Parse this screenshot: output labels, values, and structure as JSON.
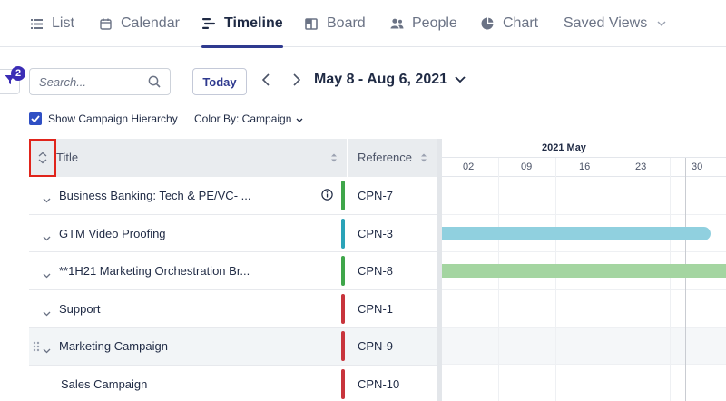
{
  "tabs": [
    {
      "label": "List",
      "icon": "list-icon",
      "active": false
    },
    {
      "label": "Calendar",
      "icon": "calendar-icon",
      "active": false
    },
    {
      "label": "Timeline",
      "icon": "timeline-icon",
      "active": true
    },
    {
      "label": "Board",
      "icon": "board-icon",
      "active": false
    },
    {
      "label": "People",
      "icon": "people-icon",
      "active": false
    },
    {
      "label": "Chart",
      "icon": "pie-chart-icon",
      "active": false
    },
    {
      "label": "Saved Views",
      "icon": "chevron-down-icon",
      "active": false
    }
  ],
  "toolbar": {
    "filter_count": "2",
    "search_placeholder": "Search...",
    "today_label": "Today",
    "date_range": "May 8 - Aug 6, 2021"
  },
  "options": {
    "show_hierarchy_label": "Show Campaign Hierarchy",
    "show_hierarchy_checked": true,
    "color_by_label": "Color By: Campaign"
  },
  "grid": {
    "col_title": "Title",
    "col_reference": "Reference",
    "rows": [
      {
        "title": "Business Banking: Tech & PE/VC- ...",
        "ref": "CPN-7",
        "color": "#3fa64a",
        "expandable": true,
        "info": true
      },
      {
        "title": "GTM Video Proofing",
        "ref": "CPN-3",
        "color": "#2aa3b8",
        "expandable": true,
        "info": false
      },
      {
        "title": "**1H21 Marketing Orchestration Br...",
        "ref": "CPN-8",
        "color": "#3fa64a",
        "expandable": true,
        "info": false
      },
      {
        "title": "Support",
        "ref": "CPN-1",
        "color": "#c8343c",
        "expandable": true,
        "info": false
      },
      {
        "title": "Marketing Campaign",
        "ref": "CPN-9",
        "color": "#c8343c",
        "expandable": true,
        "info": false
      },
      {
        "title": "Sales Campaign",
        "ref": "CPN-10",
        "color": "#c8343c",
        "expandable": false,
        "info": false
      }
    ]
  },
  "timeline": {
    "month_label": "2021 May",
    "weeks": [
      "02",
      "09",
      "16",
      "23",
      "30"
    ],
    "bar_colors": {
      "video": "#90d0df",
      "orchestration": "#a4d5a1"
    }
  }
}
